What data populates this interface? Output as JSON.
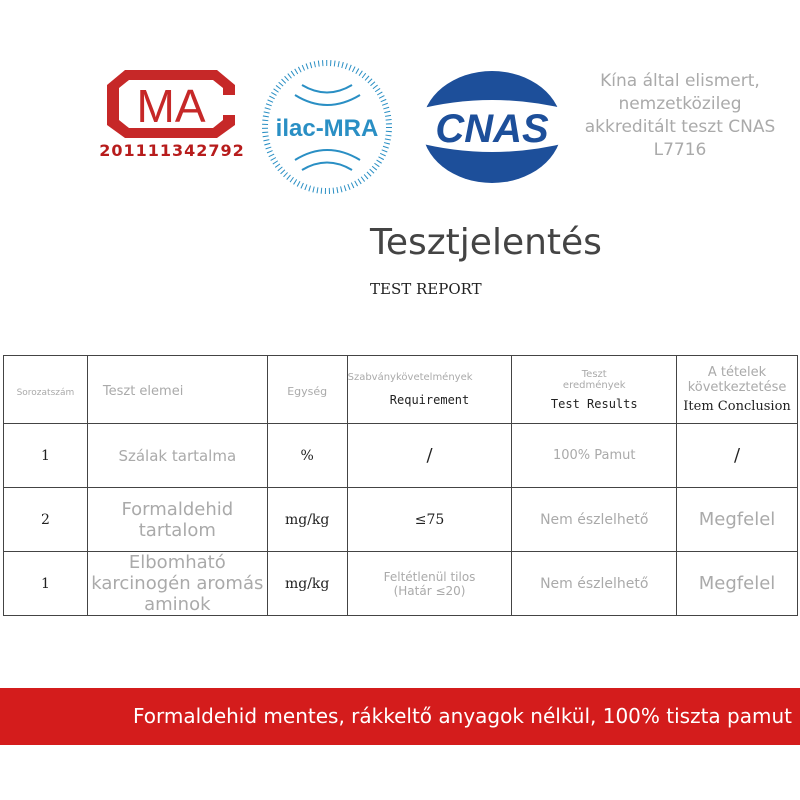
{
  "logos": {
    "cma": {
      "text": "MA",
      "number": "201111342792",
      "color": "#c62828"
    },
    "ilac": {
      "text": "ilac-MRA",
      "color": "#2a8fc4"
    },
    "cnas": {
      "text": "CNAS",
      "color": "#1d4f9a"
    }
  },
  "accreditation_text": "Kína által elismert, nemzetközileg akkreditált teszt CNAS L7716",
  "title": "Tesztjelentés",
  "subtitle": "TEST  REPORT",
  "table": {
    "headers": [
      {
        "hu": "Sorozatszám"
      },
      {
        "hu": "Teszt elemei"
      },
      {
        "hu": "Egység"
      },
      {
        "hu": "Szabványkövetelmények",
        "en": "Requirement"
      },
      {
        "hu": "Teszt eredmények",
        "en": "Test Results"
      },
      {
        "hu": "A tételek következtetése",
        "en": "Item Conclusion"
      }
    ],
    "rows": [
      {
        "no": "1",
        "item": "Szálak tartalma",
        "unit": "%",
        "req": "/",
        "result": "100% Pamut",
        "conclusion": "/"
      },
      {
        "no": "2",
        "item": "Formaldehid tartalom",
        "unit": "mg/kg",
        "req": "≤75",
        "result": "Nem észlelhető",
        "conclusion": "Megfelel"
      },
      {
        "no": "1",
        "item": "Elbomható karcinogén aromás aminok",
        "unit": "mg/kg",
        "req": "Feltétlenül tilos (Határ ≤20)",
        "result": "Nem észlelhető",
        "conclusion": "Megfelel"
      }
    ]
  },
  "banner": {
    "text": "Formaldehid mentes, rákkeltő anyagok nélkül, 100% tiszta pamut",
    "color": "#d41c1c"
  }
}
